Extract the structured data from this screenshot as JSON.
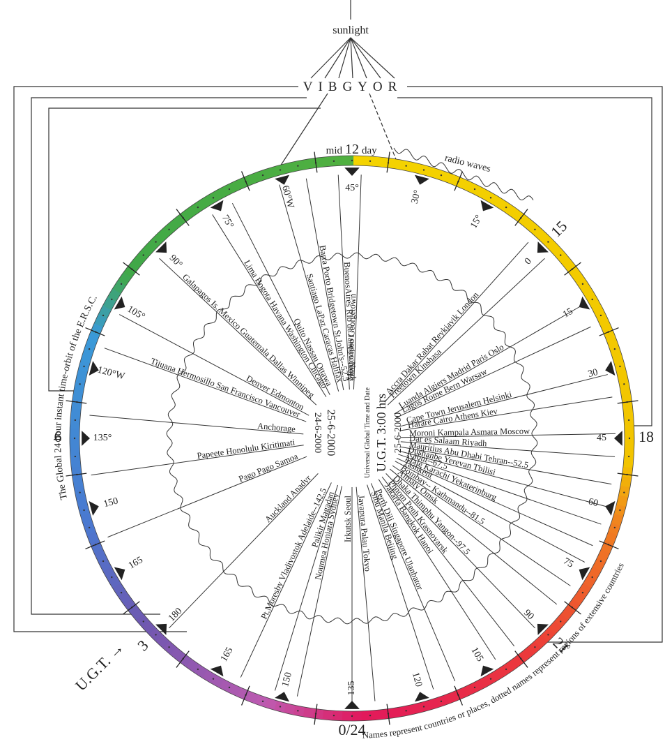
{
  "header": {
    "source": "sunlight",
    "spectrum": "VIBGYOR"
  },
  "ring": {
    "title": "The Global 24 hour instant time-orbit of the E.R.S.C.",
    "noon": {
      "pre": "mid",
      "hour": "12",
      "post": "day"
    },
    "radio": "radio waves",
    "hours": [
      "15",
      "18",
      "21",
      "0/24",
      "3",
      "6"
    ],
    "ugt_label": "U.G.T. →",
    "longitudes": [
      "45°",
      "30°",
      "15°",
      "0",
      "15",
      "30",
      "45",
      "60",
      "75",
      "90",
      "105",
      "120",
      "135",
      "150",
      "165",
      "180",
      "165",
      "150",
      "135°",
      "120°W",
      "105°",
      "90°",
      "75°",
      "60°W"
    ]
  },
  "center": {
    "title": "Universal Global Time and Date",
    "time": "U.G.T. 3:00 hrs",
    "date_east": "25-6-2000",
    "date_west_a": "24-6-2000",
    "date_west_b": "25-6-2000"
  },
  "spokes": [
    "BuenosAires  Rio de Janeiro  Nuuk",
    "Montevideo  Georgetown",
    "Accra  Dakar  Rabat  Reykjavik  London",
    "Freetown  Kinshasa",
    "Luanda  Algiers  Madrid  Paris  Oslo",
    "Lagos  Rome  Bern  Warsaw",
    "Cape Town  Jerusalem  Helsinki",
    "Harare  Cairo  Athens  Kiev",
    "Moroni  Kampala  Asmara  Moscow",
    "Dar es Salaam  Riyadh",
    "Mauritius  Abu Dhabi  Tehran--52.5",
    "Dushanbe  Yerevan  Tbilisi",
    "Kabul--67.5",
    "Male  Karachi  Yekaterinburg",
    "Tashkent",
    "Bombay--  Kathmandu--81.5",
    "Almaty  Omsk",
    "Dhaka  Thimphu  Yangon--97.5",
    "Phnom Penh  Krasnoyarsk",
    "Jakarta  Bangkok  Hanoi",
    "Perth  Dili  Singapore  Ulanbator",
    "Sibu  Manila  Beijing",
    "Jayapura  Palau  Tokyo",
    "Irkutsk  Seoul",
    "Noumea  Honiara  Sydney",
    "Palikir  Magadan",
    "Pt.Moresby  Vladivostok  Adelaide--142.5",
    "Auckland  Anadyr",
    "Pago Pago  Samoa",
    "Papeete  Honolulu  Kiritimati",
    "Anchorage",
    "Tijuana  Hermosillo  San Francisco  Vancouver",
    "Denver  Edmonton",
    "Galapagos Is.  Mexico  Guatemala  Dallas  Winnipeg",
    "Lima  Bogota  Havana  Washington  Chicago",
    "Quito  Nassau  Ottawa",
    "Santiago  LaPaz  Caracas  Halifax",
    "Barra  Porto  Bridgetown  St.John's--52.5"
  ],
  "footnote": "Names represent countries or places, dotted names represent regions of extensive countries"
}
